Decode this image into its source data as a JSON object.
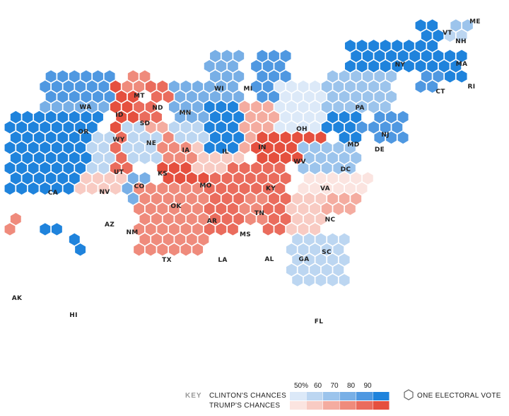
{
  "colors": {
    "clinton": [
      "#dce9f8",
      "#bcd6f1",
      "#9cc4ec",
      "#78afe6",
      "#4f98e1",
      "#1f83dc"
    ],
    "trump": [
      "#fbe4e0",
      "#f8cbc3",
      "#f4aca0",
      "#ef8b7c",
      "#ea6c5d",
      "#e5503f"
    ]
  },
  "states": [
    {
      "code": "WA",
      "party": "clinton",
      "level": 4,
      "label": "WA"
    },
    {
      "code": "OR",
      "party": "clinton",
      "level": 3,
      "label": "OR"
    },
    {
      "code": "CA",
      "party": "clinton",
      "level": 5,
      "label": "CA"
    },
    {
      "code": "NV",
      "party": "clinton",
      "level": 1,
      "label": "NV"
    },
    {
      "code": "ID",
      "party": "trump",
      "level": 5,
      "label": "ID"
    },
    {
      "code": "MT",
      "party": "trump",
      "level": 3,
      "label": "MT"
    },
    {
      "code": "WY",
      "party": "trump",
      "level": 5,
      "label": "WY"
    },
    {
      "code": "UT",
      "party": "trump",
      "level": 4,
      "label": "UT"
    },
    {
      "code": "AZ",
      "party": "trump",
      "level": 1,
      "label": "AZ"
    },
    {
      "code": "CO",
      "party": "clinton",
      "level": 1,
      "label": "CO"
    },
    {
      "code": "NM",
      "party": "clinton",
      "level": 3,
      "label": "NM"
    },
    {
      "code": "ND",
      "party": "trump",
      "level": 4,
      "label": "ND"
    },
    {
      "code": "SD",
      "party": "trump",
      "level": 4,
      "label": "SD"
    },
    {
      "code": "NE",
      "party": "trump",
      "level": 2,
      "label": "NE"
    },
    {
      "code": "KS",
      "party": "trump",
      "level": 3,
      "label": "KS"
    },
    {
      "code": "OK",
      "party": "trump",
      "level": 5,
      "label": "OK"
    },
    {
      "code": "TX",
      "party": "trump",
      "level": 3,
      "label": "TX"
    },
    {
      "code": "MN",
      "party": "clinton",
      "level": 3,
      "label": "MN"
    },
    {
      "code": "IA",
      "party": "clinton",
      "level": 1,
      "label": "IA"
    },
    {
      "code": "MO",
      "party": "trump",
      "level": 1,
      "label": "MO"
    },
    {
      "code": "AR",
      "party": "trump",
      "level": 4,
      "label": "AR"
    },
    {
      "code": "LA",
      "party": "trump",
      "level": 4,
      "label": "LA"
    },
    {
      "code": "WI",
      "party": "clinton",
      "level": 3,
      "label": "WI"
    },
    {
      "code": "IL",
      "party": "clinton",
      "level": 5,
      "label": "IL"
    },
    {
      "code": "MI",
      "party": "clinton",
      "level": 4,
      "label": "MI"
    },
    {
      "code": "IN",
      "party": "trump",
      "level": 2,
      "label": "IN"
    },
    {
      "code": "OH",
      "party": "clinton",
      "level": 0,
      "label": "OH"
    },
    {
      "code": "KY",
      "party": "trump",
      "level": 5,
      "label": "KY"
    },
    {
      "code": "TN",
      "party": "trump",
      "level": 4,
      "label": "TN"
    },
    {
      "code": "MS",
      "party": "trump",
      "level": 3,
      "label": "MS"
    },
    {
      "code": "AL",
      "party": "trump",
      "level": 4,
      "label": "AL"
    },
    {
      "code": "GA",
      "party": "trump",
      "level": 1,
      "label": "GA"
    },
    {
      "code": "FL",
      "party": "clinton",
      "level": 1,
      "label": "FL"
    },
    {
      "code": "SC",
      "party": "trump",
      "level": 2,
      "label": "SC"
    },
    {
      "code": "NC",
      "party": "trump",
      "level": 0,
      "label": "NC"
    },
    {
      "code": "WV",
      "party": "trump",
      "level": 5,
      "label": "WV"
    },
    {
      "code": "VA",
      "party": "clinton",
      "level": 2,
      "label": "VA"
    },
    {
      "code": "PA",
      "party": "clinton",
      "level": 2,
      "label": "PA"
    },
    {
      "code": "NY",
      "party": "clinton",
      "level": 5,
      "label": "NY"
    },
    {
      "code": "NJ",
      "party": "clinton",
      "level": 4,
      "label": "NJ"
    },
    {
      "code": "DE",
      "party": "clinton",
      "level": 4,
      "label": "DE"
    },
    {
      "code": "MD",
      "party": "clinton",
      "level": 5,
      "label": "MD"
    },
    {
      "code": "DC",
      "party": "clinton",
      "level": 5,
      "label": "DC"
    },
    {
      "code": "CT",
      "party": "clinton",
      "level": 4,
      "label": "CT"
    },
    {
      "code": "RI",
      "party": "clinton",
      "level": 5,
      "label": "RI"
    },
    {
      "code": "MA",
      "party": "clinton",
      "level": 5,
      "label": "MA"
    },
    {
      "code": "VT",
      "party": "clinton",
      "level": 5,
      "label": "VT"
    },
    {
      "code": "NH",
      "party": "clinton",
      "level": 1,
      "label": "NH"
    },
    {
      "code": "ME",
      "party": "clinton",
      "level": 2,
      "label": "ME"
    },
    {
      "code": "AK",
      "party": "trump",
      "level": 3,
      "label": "AK"
    },
    {
      "code": "HI",
      "party": "clinton",
      "level": 5,
      "label": "HI"
    }
  ],
  "key": {
    "title": "KEY",
    "clinton_label": "CLINTON'S CHANCES",
    "trump_label": "TRUMP'S CHANCES",
    "ticks": [
      "50%",
      "60",
      "70",
      "80",
      "90"
    ],
    "electoral_vote_label": "ONE ELECTORAL VOTE"
  }
}
